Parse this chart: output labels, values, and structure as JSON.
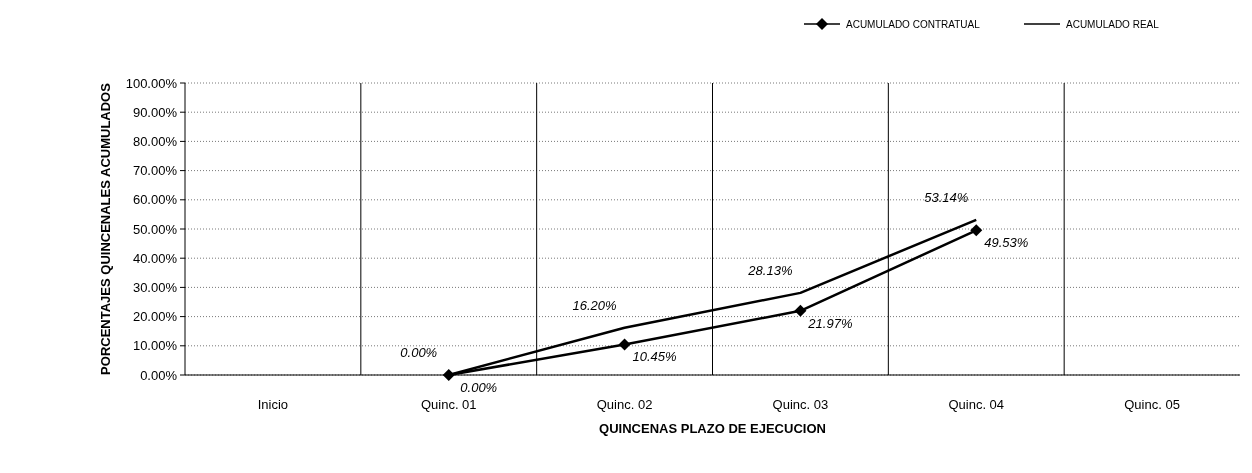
{
  "chart_data": {
    "type": "line",
    "xlabel": "QUINCENAS PLAZO DE EJECUCION",
    "ylabel": "PORCENTAJES QUINCENALES ACUMULADOS",
    "categories": [
      "Inicio",
      "Quinc. 01",
      "Quinc. 02",
      "Quinc. 03",
      "Quinc. 04",
      "Quinc. 05"
    ],
    "series": [
      {
        "name": "ACUMULADO CONTRATUAL",
        "color": "#000000",
        "marker": "diamond",
        "values": [
          null,
          0,
          10.45,
          21.97,
          49.53,
          null
        ],
        "value_labels": [
          null,
          "0.00%",
          "10.45%",
          "21.97%",
          "49.53%",
          null
        ]
      },
      {
        "name": "ACUMULADO REAL",
        "color": "#000000",
        "marker": "none",
        "values": [
          null,
          0,
          16.2,
          28.13,
          53.14,
          null
        ],
        "value_labels": [
          null,
          "0.00%",
          "16.20%",
          "28.13%",
          "53.14%",
          null
        ]
      }
    ],
    "ylim": [
      0,
      100
    ],
    "yticks": [
      {
        "value": 0,
        "label": "0.00%"
      },
      {
        "value": 10,
        "label": "10.00%"
      },
      {
        "value": 20,
        "label": "20.00%"
      },
      {
        "value": 30,
        "label": "30.00%"
      },
      {
        "value": 40,
        "label": "40.00%"
      },
      {
        "value": 50,
        "label": "50.00%"
      },
      {
        "value": 60,
        "label": "60.00%"
      },
      {
        "value": 70,
        "label": "70.00%"
      },
      {
        "value": 80,
        "label": "80.00%"
      },
      {
        "value": 90,
        "label": "90.00%"
      },
      {
        "value": 100,
        "label": "100.00%"
      }
    ],
    "grid": "y",
    "legend": "top right"
  }
}
